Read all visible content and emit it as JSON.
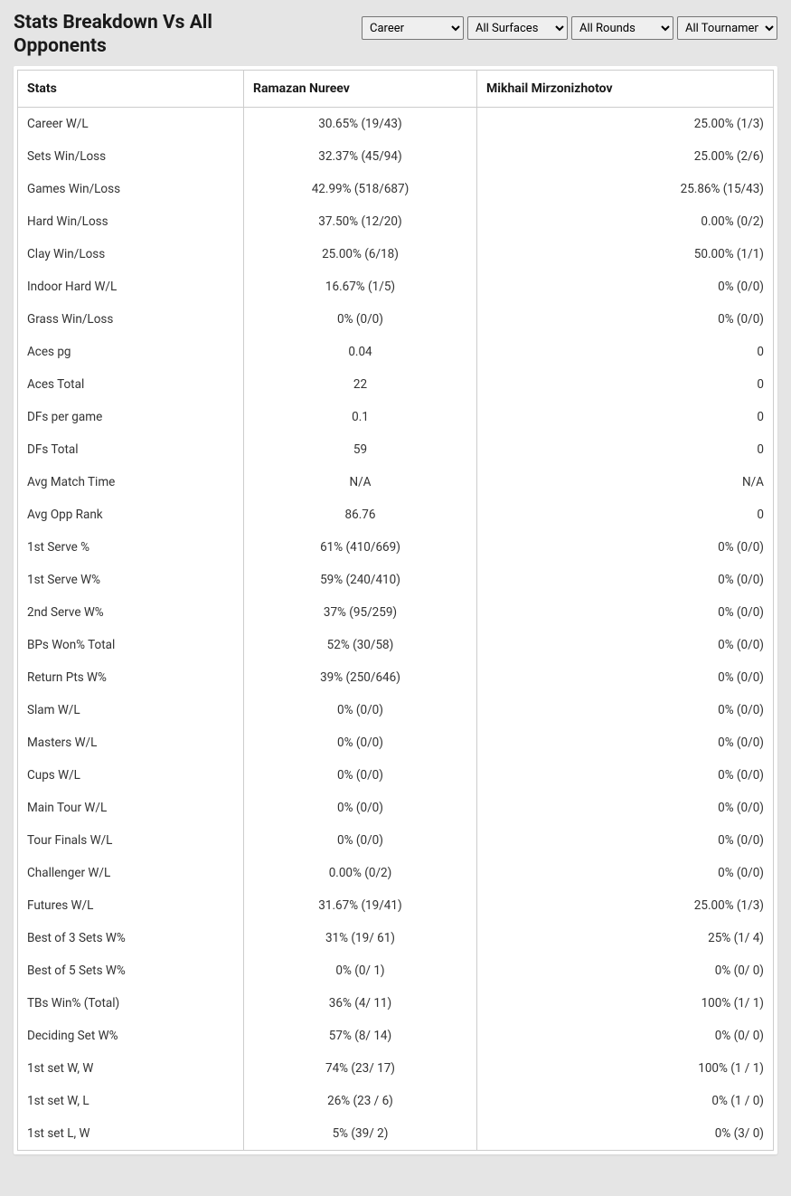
{
  "title": "Stats Breakdown Vs All Opponents",
  "filters": {
    "career": {
      "selected": "Career",
      "options": [
        "Career"
      ]
    },
    "surfaces": {
      "selected": "All Surfaces",
      "options": [
        "All Surfaces"
      ]
    },
    "rounds": {
      "selected": "All Rounds",
      "options": [
        "All Rounds"
      ]
    },
    "tournaments": {
      "selected": "All Tournaments",
      "options": [
        "All Tournaments"
      ]
    }
  },
  "columns": {
    "stats": "Stats",
    "player1": "Ramazan Nureev",
    "player2": "Mikhail Mirzonizhotov"
  },
  "rows": [
    {
      "stat": "Career W/L",
      "p1": "30.65% (19/43)",
      "p2": "25.00% (1/3)"
    },
    {
      "stat": "Sets Win/Loss",
      "p1": "32.37% (45/94)",
      "p2": "25.00% (2/6)"
    },
    {
      "stat": "Games Win/Loss",
      "p1": "42.99% (518/687)",
      "p2": "25.86% (15/43)"
    },
    {
      "stat": "Hard Win/Loss",
      "p1": "37.50% (12/20)",
      "p2": "0.00% (0/2)"
    },
    {
      "stat": "Clay Win/Loss",
      "p1": "25.00% (6/18)",
      "p2": "50.00% (1/1)"
    },
    {
      "stat": "Indoor Hard W/L",
      "p1": "16.67% (1/5)",
      "p2": "0% (0/0)"
    },
    {
      "stat": "Grass Win/Loss",
      "p1": "0% (0/0)",
      "p2": "0% (0/0)"
    },
    {
      "stat": "Aces pg",
      "p1": "0.04",
      "p2": "0"
    },
    {
      "stat": "Aces Total",
      "p1": "22",
      "p2": "0"
    },
    {
      "stat": "DFs per game",
      "p1": "0.1",
      "p2": "0"
    },
    {
      "stat": "DFs Total",
      "p1": "59",
      "p2": "0"
    },
    {
      "stat": "Avg Match Time",
      "p1": "N/A",
      "p2": "N/A"
    },
    {
      "stat": "Avg Opp Rank",
      "p1": "86.76",
      "p2": "0"
    },
    {
      "stat": "1st Serve %",
      "p1": "61% (410/669)",
      "p2": "0% (0/0)"
    },
    {
      "stat": "1st Serve W%",
      "p1": "59% (240/410)",
      "p2": "0% (0/0)"
    },
    {
      "stat": "2nd Serve W%",
      "p1": "37% (95/259)",
      "p2": "0% (0/0)"
    },
    {
      "stat": "BPs Won% Total",
      "p1": "52% (30/58)",
      "p2": "0% (0/0)"
    },
    {
      "stat": "Return Pts W%",
      "p1": "39% (250/646)",
      "p2": "0% (0/0)"
    },
    {
      "stat": "Slam W/L",
      "p1": "0% (0/0)",
      "p2": "0% (0/0)"
    },
    {
      "stat": "Masters W/L",
      "p1": "0% (0/0)",
      "p2": "0% (0/0)"
    },
    {
      "stat": "Cups W/L",
      "p1": "0% (0/0)",
      "p2": "0% (0/0)"
    },
    {
      "stat": "Main Tour W/L",
      "p1": "0% (0/0)",
      "p2": "0% (0/0)"
    },
    {
      "stat": "Tour Finals W/L",
      "p1": "0% (0/0)",
      "p2": "0% (0/0)"
    },
    {
      "stat": "Challenger W/L",
      "p1": "0.00% (0/2)",
      "p2": "0% (0/0)"
    },
    {
      "stat": "Futures W/L",
      "p1": "31.67% (19/41)",
      "p2": "25.00% (1/3)"
    },
    {
      "stat": "Best of 3 Sets W%",
      "p1": "31% (19/ 61)",
      "p2": "25% (1/ 4)"
    },
    {
      "stat": "Best of 5 Sets W%",
      "p1": "0% (0/ 1)",
      "p2": "0% (0/ 0)"
    },
    {
      "stat": "TBs Win% (Total)",
      "p1": "36% (4/ 11)",
      "p2": "100% (1/ 1)"
    },
    {
      "stat": "Deciding Set W%",
      "p1": "57% (8/ 14)",
      "p2": "0% (0/ 0)"
    },
    {
      "stat": "1st set W, W",
      "p1": "74% (23/ 17)",
      "p2": "100% (1 / 1)"
    },
    {
      "stat": "1st set W, L",
      "p1": "26% (23 / 6)",
      "p2": "0% (1 / 0)"
    },
    {
      "stat": "1st set L, W",
      "p1": "5% (39/ 2)",
      "p2": "0% (3/ 0)"
    }
  ],
  "style": {
    "background_color": "#e5e5e5",
    "table_background": "#ffffff",
    "border_color": "#cccccc",
    "text_color": "#333333",
    "header_text_color": "#1a1a1a",
    "title_fontsize": 21,
    "header_fontsize": 14,
    "cell_fontsize": 13.5
  }
}
